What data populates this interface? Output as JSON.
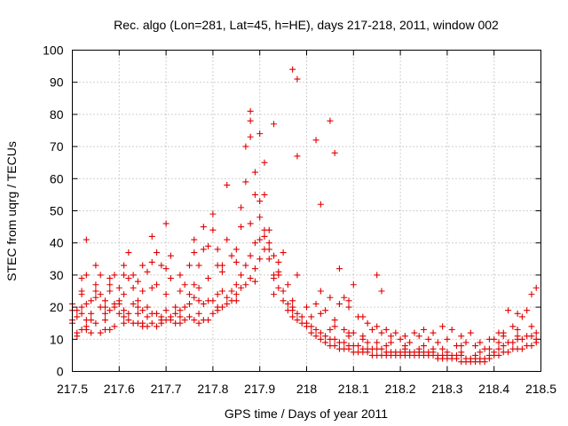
{
  "chart_data": {
    "type": "scatter",
    "title": "Rec. algo (Lon=281, Lat=45, h=HE), days 217-218, 2011, window 002",
    "xlabel": "GPS time / Days of year 2011",
    "ylabel": "STEC from uqrg / TECUs",
    "xlim": [
      217.5,
      218.5
    ],
    "ylim": [
      0,
      100
    ],
    "x_ticks": [
      "217.5",
      "217.6",
      "217.7",
      "217.8",
      "217.9",
      "218",
      "218.1",
      "218.2",
      "218.3",
      "218.4",
      "218.5"
    ],
    "y_ticks": [
      "0",
      "10",
      "20",
      "30",
      "40",
      "50",
      "60",
      "70",
      "80",
      "90",
      "100"
    ],
    "grid": true,
    "marker": "+",
    "color": "#e00000",
    "points": [
      [
        217.5,
        21
      ],
      [
        217.5,
        16
      ],
      [
        217.51,
        12
      ],
      [
        217.51,
        19
      ],
      [
        217.52,
        24
      ],
      [
        217.52,
        25
      ],
      [
        217.52,
        18
      ],
      [
        217.53,
        41
      ],
      [
        217.53,
        30
      ],
      [
        217.53,
        21
      ],
      [
        217.54,
        16
      ],
      [
        217.54,
        18
      ],
      [
        217.55,
        33
      ],
      [
        217.55,
        27
      ],
      [
        217.56,
        30
      ],
      [
        217.56,
        24
      ],
      [
        217.57,
        20
      ],
      [
        217.57,
        22
      ],
      [
        217.58,
        25
      ],
      [
        217.58,
        29
      ],
      [
        217.59,
        30
      ],
      [
        217.59,
        21
      ],
      [
        217.6,
        26
      ],
      [
        217.6,
        22
      ],
      [
        217.61,
        33
      ],
      [
        217.61,
        24
      ],
      [
        217.62,
        37
      ],
      [
        217.62,
        29
      ],
      [
        217.63,
        30
      ],
      [
        217.63,
        26
      ],
      [
        217.64,
        22
      ],
      [
        217.64,
        18
      ],
      [
        217.65,
        33
      ],
      [
        217.65,
        25
      ],
      [
        217.66,
        31
      ],
      [
        217.66,
        20
      ],
      [
        217.67,
        42
      ],
      [
        217.67,
        34
      ],
      [
        217.68,
        37
      ],
      [
        217.68,
        27
      ],
      [
        217.69,
        33
      ],
      [
        217.7,
        46
      ],
      [
        217.7,
        32
      ],
      [
        217.71,
        36
      ],
      [
        217.71,
        29
      ],
      [
        217.72,
        20
      ],
      [
        217.73,
        30
      ],
      [
        217.74,
        27
      ],
      [
        217.75,
        33
      ],
      [
        217.75,
        24
      ],
      [
        217.76,
        41
      ],
      [
        217.76,
        37
      ],
      [
        217.77,
        33
      ],
      [
        217.77,
        26
      ],
      [
        217.78,
        45
      ],
      [
        217.78,
        38
      ],
      [
        217.79,
        39
      ],
      [
        217.8,
        49
      ],
      [
        217.8,
        44
      ],
      [
        217.81,
        38
      ],
      [
        217.81,
        33
      ],
      [
        217.82,
        31
      ],
      [
        217.83,
        41
      ],
      [
        217.83,
        58
      ],
      [
        217.84,
        36
      ],
      [
        217.85,
        34
      ],
      [
        217.86,
        51
      ],
      [
        217.86,
        45
      ],
      [
        217.87,
        70
      ],
      [
        217.87,
        59
      ],
      [
        217.88,
        81
      ],
      [
        217.88,
        78
      ],
      [
        217.88,
        73
      ],
      [
        217.89,
        62
      ],
      [
        217.89,
        55
      ],
      [
        217.9,
        74
      ],
      [
        217.9,
        53
      ],
      [
        217.9,
        48
      ],
      [
        217.91,
        65
      ],
      [
        217.91,
        42
      ],
      [
        217.92,
        44
      ],
      [
        217.92,
        38
      ],
      [
        217.93,
        77
      ],
      [
        217.93,
        29
      ],
      [
        217.94,
        34
      ],
      [
        217.95,
        37
      ],
      [
        217.96,
        27
      ],
      [
        217.97,
        94
      ],
      [
        217.98,
        91
      ],
      [
        217.98,
        67
      ],
      [
        217.98,
        30
      ],
      [
        218.02,
        72
      ],
      [
        218.03,
        52
      ],
      [
        218.05,
        78
      ],
      [
        218.06,
        68
      ],
      [
        218.07,
        32
      ],
      [
        218.08,
        23
      ],
      [
        218.09,
        20
      ],
      [
        218.1,
        27
      ],
      [
        218.12,
        17
      ],
      [
        218.15,
        30
      ],
      [
        218.16,
        25
      ],
      [
        217.5,
        15
      ],
      [
        217.51,
        11
      ],
      [
        217.52,
        13
      ],
      [
        217.53,
        14
      ],
      [
        217.54,
        12
      ],
      [
        217.55,
        15
      ],
      [
        217.56,
        12
      ],
      [
        217.57,
        13
      ],
      [
        217.58,
        13
      ],
      [
        217.59,
        14
      ],
      [
        217.6,
        18
      ],
      [
        217.61,
        17
      ],
      [
        217.62,
        16
      ],
      [
        217.63,
        15
      ],
      [
        217.64,
        15
      ],
      [
        217.65,
        15
      ],
      [
        217.66,
        14
      ],
      [
        217.67,
        15
      ],
      [
        217.68,
        14
      ],
      [
        217.69,
        15
      ],
      [
        217.7,
        16
      ],
      [
        217.71,
        16
      ],
      [
        217.72,
        15
      ],
      [
        217.73,
        15
      ],
      [
        217.74,
        16
      ],
      [
        217.75,
        17
      ],
      [
        217.76,
        16
      ],
      [
        217.77,
        15
      ],
      [
        217.78,
        16
      ],
      [
        217.79,
        16
      ],
      [
        217.8,
        18
      ],
      [
        217.81,
        19
      ],
      [
        217.82,
        20
      ],
      [
        217.83,
        21
      ],
      [
        217.84,
        22
      ],
      [
        217.85,
        24
      ],
      [
        217.86,
        26
      ],
      [
        217.87,
        27
      ],
      [
        217.88,
        29
      ],
      [
        217.89,
        32
      ],
      [
        217.9,
        35
      ],
      [
        217.91,
        38
      ],
      [
        217.92,
        35
      ],
      [
        217.93,
        30
      ],
      [
        217.94,
        26
      ],
      [
        217.95,
        22
      ],
      [
        217.96,
        19
      ],
      [
        217.97,
        17
      ],
      [
        217.98,
        16
      ],
      [
        217.99,
        15
      ],
      [
        218.0,
        14
      ],
      [
        218.01,
        12
      ],
      [
        218.02,
        11
      ],
      [
        218.03,
        10
      ],
      [
        218.04,
        9
      ],
      [
        218.05,
        8
      ],
      [
        218.06,
        8
      ],
      [
        218.07,
        7
      ],
      [
        218.08,
        7
      ],
      [
        218.09,
        7
      ],
      [
        218.1,
        6
      ],
      [
        218.11,
        6
      ],
      [
        218.12,
        6
      ],
      [
        218.13,
        6
      ],
      [
        218.14,
        5
      ],
      [
        218.15,
        5
      ],
      [
        218.16,
        5
      ],
      [
        218.17,
        5
      ],
      [
        218.18,
        5
      ],
      [
        218.19,
        5
      ],
      [
        218.2,
        5
      ],
      [
        218.21,
        5
      ],
      [
        218.22,
        5
      ],
      [
        218.23,
        5
      ],
      [
        218.24,
        5
      ],
      [
        218.25,
        5
      ],
      [
        218.26,
        5
      ],
      [
        218.27,
        5
      ],
      [
        218.28,
        4
      ],
      [
        218.29,
        4
      ],
      [
        218.3,
        4
      ],
      [
        218.31,
        4
      ],
      [
        218.32,
        4
      ],
      [
        218.33,
        3
      ],
      [
        218.34,
        3
      ],
      [
        218.35,
        3
      ],
      [
        218.36,
        3
      ],
      [
        218.37,
        3
      ],
      [
        218.38,
        3
      ],
      [
        218.39,
        4
      ],
      [
        218.4,
        5
      ],
      [
        218.41,
        5
      ],
      [
        218.42,
        6
      ],
      [
        218.43,
        6
      ],
      [
        218.44,
        7
      ],
      [
        218.45,
        7
      ],
      [
        218.46,
        7
      ],
      [
        218.47,
        8
      ],
      [
        218.48,
        8
      ],
      [
        218.49,
        9
      ],
      [
        217.5,
        19
      ],
      [
        217.51,
        17
      ],
      [
        217.52,
        20
      ],
      [
        217.53,
        16
      ],
      [
        217.54,
        22
      ],
      [
        217.55,
        23
      ],
      [
        217.56,
        20
      ],
      [
        217.57,
        18
      ],
      [
        217.58,
        19
      ],
      [
        217.59,
        20
      ],
      [
        217.6,
        21
      ],
      [
        217.61,
        19
      ],
      [
        217.62,
        18
      ],
      [
        217.63,
        21
      ],
      [
        217.64,
        20
      ],
      [
        217.65,
        19
      ],
      [
        217.66,
        17
      ],
      [
        217.67,
        18
      ],
      [
        217.68,
        18
      ],
      [
        217.69,
        17
      ],
      [
        217.7,
        19
      ],
      [
        217.71,
        17
      ],
      [
        217.72,
        18
      ],
      [
        217.73,
        19
      ],
      [
        217.74,
        20
      ],
      [
        217.75,
        21
      ],
      [
        217.76,
        23
      ],
      [
        217.77,
        22
      ],
      [
        217.78,
        21
      ],
      [
        217.79,
        22
      ],
      [
        217.8,
        22
      ],
      [
        217.81,
        24
      ],
      [
        217.82,
        25
      ],
      [
        217.83,
        23
      ],
      [
        217.84,
        25
      ],
      [
        217.85,
        27
      ],
      [
        217.86,
        30
      ],
      [
        217.87,
        33
      ],
      [
        217.88,
        36
      ],
      [
        217.89,
        40
      ],
      [
        217.9,
        41
      ],
      [
        217.91,
        44
      ],
      [
        217.92,
        40
      ],
      [
        217.93,
        36
      ],
      [
        217.94,
        30
      ],
      [
        217.95,
        25
      ],
      [
        217.96,
        21
      ],
      [
        217.97,
        19
      ],
      [
        217.98,
        18
      ],
      [
        217.99,
        17
      ],
      [
        218.0,
        15
      ],
      [
        218.01,
        14
      ],
      [
        218.02,
        13
      ],
      [
        218.03,
        12
      ],
      [
        218.04,
        11
      ],
      [
        218.05,
        10
      ],
      [
        218.06,
        10
      ],
      [
        218.07,
        9
      ],
      [
        218.08,
        9
      ],
      [
        218.09,
        8
      ],
      [
        218.1,
        8
      ],
      [
        218.11,
        8
      ],
      [
        218.12,
        7
      ],
      [
        218.13,
        7
      ],
      [
        218.14,
        7
      ],
      [
        218.15,
        7
      ],
      [
        218.16,
        7
      ],
      [
        218.17,
        6
      ],
      [
        218.18,
        6
      ],
      [
        218.19,
        6
      ],
      [
        218.2,
        6
      ],
      [
        218.21,
        6
      ],
      [
        218.22,
        6
      ],
      [
        218.23,
        6
      ],
      [
        218.24,
        6
      ],
      [
        218.25,
        6
      ],
      [
        218.26,
        6
      ],
      [
        218.27,
        6
      ],
      [
        218.28,
        5
      ],
      [
        218.29,
        5
      ],
      [
        218.3,
        5
      ],
      [
        218.31,
        5
      ],
      [
        218.32,
        5
      ],
      [
        218.33,
        5
      ],
      [
        218.34,
        4
      ],
      [
        218.35,
        4
      ],
      [
        218.36,
        4
      ],
      [
        218.37,
        4
      ],
      [
        218.38,
        4
      ],
      [
        218.39,
        5
      ],
      [
        218.4,
        6
      ],
      [
        218.41,
        7
      ],
      [
        218.42,
        8
      ],
      [
        218.43,
        9
      ],
      [
        218.44,
        9
      ],
      [
        218.45,
        10
      ],
      [
        218.46,
        10
      ],
      [
        218.47,
        11
      ],
      [
        218.48,
        11
      ],
      [
        218.49,
        12
      ],
      [
        217.52,
        29
      ],
      [
        217.55,
        25
      ],
      [
        217.58,
        27
      ],
      [
        217.61,
        30
      ],
      [
        217.64,
        28
      ],
      [
        217.67,
        26
      ],
      [
        217.7,
        24
      ],
      [
        217.73,
        25
      ],
      [
        217.76,
        27
      ],
      [
        217.79,
        29
      ],
      [
        217.82,
        33
      ],
      [
        217.85,
        38
      ],
      [
        217.88,
        46
      ],
      [
        217.91,
        55
      ],
      [
        217.94,
        31
      ],
      [
        217.97,
        22
      ],
      [
        218.0,
        20
      ],
      [
        218.03,
        18
      ],
      [
        218.06,
        14
      ],
      [
        218.09,
        12
      ],
      [
        218.12,
        10
      ],
      [
        218.15,
        9
      ],
      [
        218.18,
        9
      ],
      [
        218.21,
        8
      ],
      [
        218.24,
        7
      ],
      [
        218.27,
        7
      ],
      [
        218.3,
        6
      ],
      [
        218.33,
        6
      ],
      [
        218.36,
        5
      ],
      [
        218.39,
        7
      ],
      [
        218.42,
        11
      ],
      [
        218.45,
        13
      ],
      [
        218.48,
        14
      ],
      [
        217.53,
        13
      ],
      [
        217.57,
        16
      ],
      [
        217.61,
        15
      ],
      [
        217.65,
        14
      ],
      [
        217.69,
        16
      ],
      [
        217.73,
        17
      ],
      [
        217.77,
        18
      ],
      [
        217.81,
        20
      ],
      [
        217.85,
        22
      ],
      [
        217.89,
        28
      ],
      [
        217.93,
        24
      ],
      [
        217.97,
        20
      ],
      [
        218.01,
        17
      ],
      [
        218.05,
        13
      ],
      [
        218.09,
        11
      ],
      [
        218.13,
        9
      ],
      [
        218.17,
        8
      ],
      [
        218.21,
        7
      ],
      [
        218.25,
        8
      ],
      [
        218.29,
        7
      ],
      [
        218.33,
        8
      ],
      [
        218.37,
        6
      ],
      [
        218.41,
        9
      ],
      [
        218.45,
        11
      ],
      [
        218.49,
        10
      ],
      [
        218.02,
        21
      ],
      [
        218.04,
        19
      ],
      [
        218.06,
        16
      ],
      [
        218.08,
        13
      ],
      [
        218.1,
        12
      ],
      [
        218.12,
        11
      ],
      [
        218.14,
        13
      ],
      [
        218.16,
        12
      ],
      [
        218.18,
        11
      ],
      [
        218.2,
        10
      ],
      [
        218.22,
        9
      ],
      [
        218.24,
        11
      ],
      [
        218.26,
        10
      ],
      [
        218.28,
        9
      ],
      [
        218.3,
        10
      ],
      [
        218.32,
        8
      ],
      [
        218.34,
        9
      ],
      [
        218.36,
        8
      ],
      [
        218.38,
        7
      ],
      [
        218.4,
        10
      ],
      [
        218.42,
        12
      ],
      [
        218.44,
        14
      ],
      [
        218.46,
        17
      ],
      [
        218.48,
        24
      ],
      [
        218.49,
        26
      ],
      [
        218.47,
        19
      ],
      [
        218.45,
        18
      ],
      [
        218.43,
        19
      ],
      [
        218.41,
        12
      ],
      [
        218.39,
        10
      ],
      [
        218.37,
        9
      ],
      [
        218.35,
        12
      ],
      [
        218.33,
        11
      ],
      [
        218.31,
        13
      ],
      [
        218.29,
        14
      ],
      [
        218.27,
        12
      ],
      [
        218.25,
        13
      ],
      [
        218.23,
        12
      ],
      [
        218.21,
        11
      ],
      [
        218.19,
        12
      ],
      [
        218.17,
        13
      ],
      [
        218.15,
        14
      ],
      [
        218.13,
        15
      ],
      [
        218.11,
        17
      ],
      [
        218.09,
        22
      ],
      [
        218.07,
        21
      ],
      [
        218.05,
        23
      ],
      [
        218.03,
        25
      ]
    ]
  }
}
